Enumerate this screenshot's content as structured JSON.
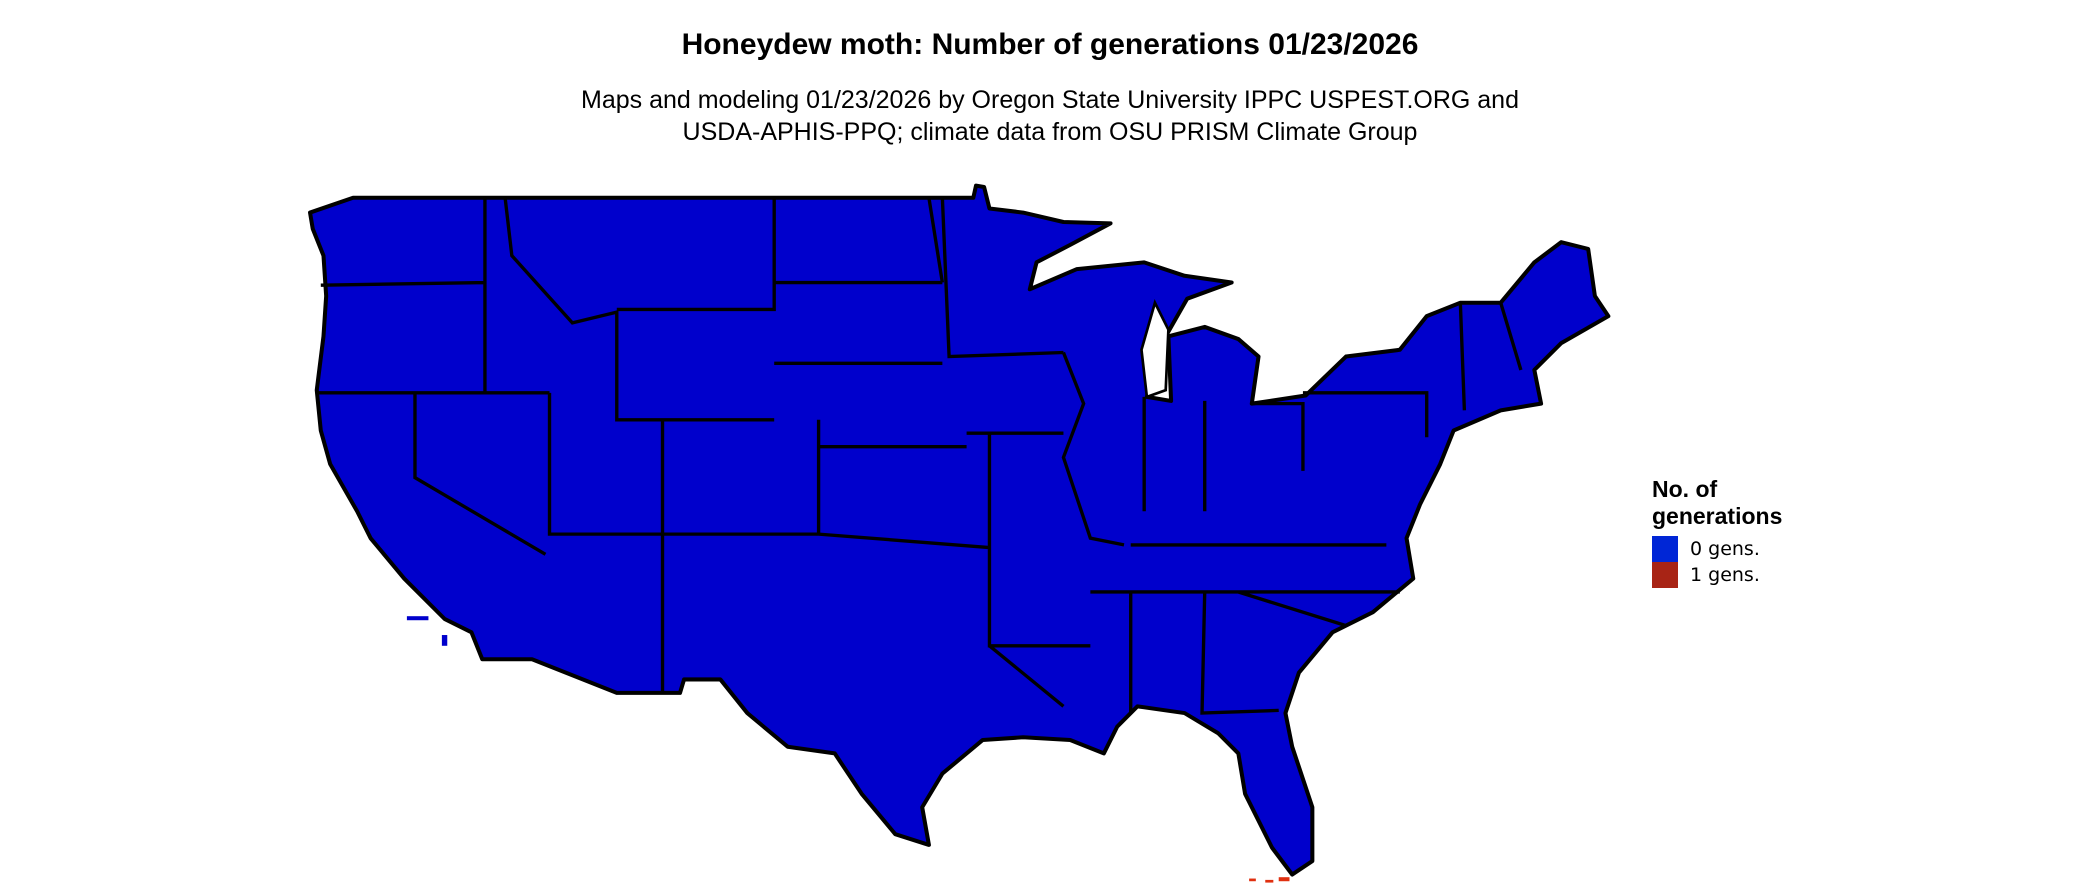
{
  "title": "Honeydew moth: Number of generations 01/23/2026",
  "subtitle_line1": "Maps and modeling 01/23/2026 by Oregon State University IPPC USPEST.ORG and",
  "subtitle_line2": "USDA-APHIS-PPQ; climate data from OSU PRISM Climate Group",
  "map": {
    "region": "Contiguous United States",
    "fill_color": "#0000CC",
    "border_color": "#000000"
  },
  "legend": {
    "title_line1": "No. of",
    "title_line2": "generations",
    "items": [
      {
        "label": "0 gens.",
        "color": "#0026D6"
      },
      {
        "label": "1 gens.",
        "color": "#A82415"
      }
    ]
  }
}
